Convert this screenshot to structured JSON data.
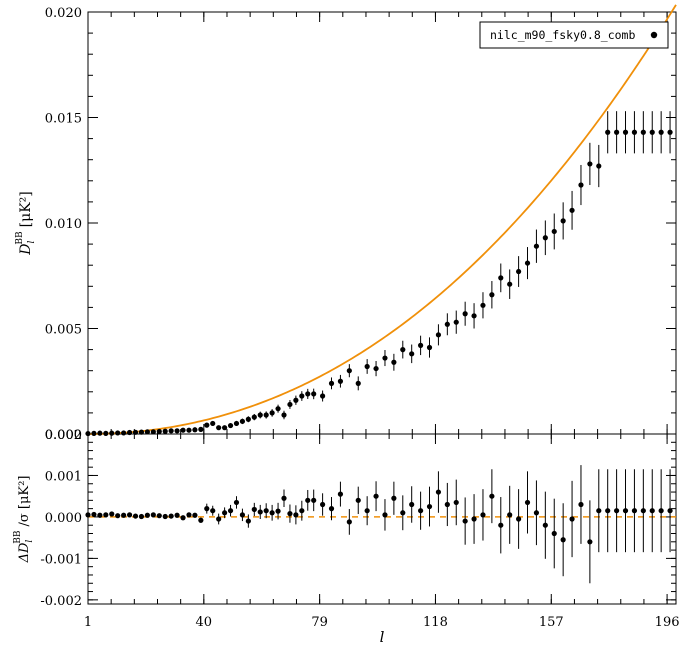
{
  "chart_data": [
    {
      "type": "scatter",
      "panel": "top",
      "ylabel_main": "D",
      "ylabel_sub": "l",
      "ylabel_sup": "BB",
      "ylabel_unit": "[μK²]",
      "ylim": [
        0,
        0.02
      ],
      "yticks": [
        "0.000",
        "0.005",
        "0.010",
        "0.015",
        "0.020"
      ],
      "ytick_values": [
        0,
        0.005,
        0.01,
        0.015,
        0.02
      ],
      "legend": {
        "label": "nilc_m90_fsky0.8_comb",
        "placement": "top-right"
      },
      "model_color": "#f0900a",
      "model_style": "solid",
      "points_x": [
        1,
        3,
        5,
        7,
        9,
        11,
        13,
        15,
        17,
        19,
        21,
        23,
        25,
        27,
        29,
        31,
        33,
        35,
        37,
        39,
        41,
        43,
        45,
        47,
        49,
        51,
        53,
        55,
        57,
        59,
        61,
        63,
        65,
        67,
        69,
        71,
        73,
        75,
        77,
        80,
        83,
        86,
        89,
        92,
        95,
        98,
        101,
        104,
        107,
        110,
        113,
        116,
        119,
        122,
        125,
        128,
        131,
        134,
        137,
        140,
        143,
        146,
        149,
        152,
        155,
        158,
        161,
        164,
        167,
        170,
        173,
        176,
        179,
        182,
        185,
        188,
        191,
        194,
        197
      ],
      "points_y": [
        2e-05,
        3e-05,
        4e-05,
        3e-05,
        4e-05,
        5e-05,
        5e-05,
        7e-05,
        8e-05,
        9e-05,
        0.0001,
        0.0001,
        0.00012,
        0.00013,
        0.00015,
        0.00015,
        0.00018,
        0.00018,
        0.0002,
        0.00022,
        0.00042,
        0.0005,
        0.0003,
        0.0003,
        0.0004,
        0.0005,
        0.0006,
        0.0007,
        0.0008,
        0.0009,
        0.0009,
        0.001,
        0.0012,
        0.0009,
        0.0014,
        0.0016,
        0.0018,
        0.0019,
        0.0019,
        0.0018,
        0.0024,
        0.0025,
        0.003,
        0.0024,
        0.0032,
        0.0031,
        0.0036,
        0.0034,
        0.004,
        0.0038,
        0.0042,
        0.0041,
        0.0047,
        0.0052,
        0.0053,
        0.0057,
        0.0056,
        0.0061,
        0.0066,
        0.0074,
        0.0071,
        0.0077,
        0.0081,
        0.0089,
        0.0093,
        0.0096,
        0.0101,
        0.0106,
        0.0118,
        0.0128,
        0.0127,
        0.0143,
        0.0143,
        0.0143,
        0.0143,
        0.0143,
        0.0143,
        0.0143,
        0.0143
      ],
      "points_err": [
        1e-05,
        1e-05,
        1e-05,
        1e-05,
        1e-05,
        2e-05,
        2e-05,
        2e-05,
        2e-05,
        3e-05,
        3e-05,
        3e-05,
        3e-05,
        4e-05,
        4e-05,
        4e-05,
        5e-05,
        5e-05,
        6e-05,
        6e-05,
        8e-05,
        9e-05,
        0.0001,
        0.0001,
        0.00011,
        0.00012,
        0.00013,
        0.00014,
        0.00015,
        0.00016,
        0.00017,
        0.00018,
        0.00019,
        0.0002,
        0.00021,
        0.00022,
        0.00023,
        0.00024,
        0.00025,
        0.00026,
        0.00028,
        0.0003,
        0.00031,
        0.00033,
        0.00035,
        0.00036,
        0.00038,
        0.0004,
        0.00042,
        0.00044,
        0.00046,
        0.00048,
        0.0005,
        0.00052,
        0.00055,
        0.00057,
        0.0006,
        0.00062,
        0.00065,
        0.00068,
        0.0007,
        0.00073,
        0.00076,
        0.00079,
        0.00082,
        0.00085,
        0.00088,
        0.00092,
        0.00095,
        0.001,
        0.001,
        0.001,
        0.001,
        0.001,
        0.001,
        0.001,
        0.001,
        0.001,
        0.001
      ]
    },
    {
      "type": "scatter",
      "panel": "bottom",
      "ylabel_prefix": "ΔD",
      "ylabel_sub": "l",
      "ylabel_sup": "BB",
      "ylabel_suffix": "/σ [μK²]",
      "ylim": [
        -0.0021,
        0.002
      ],
      "yticks": [
        "-0.002",
        "-0.001",
        "0.000",
        "0.001",
        "0.002"
      ],
      "ytick_values": [
        -0.002,
        -0.001,
        0,
        0.001,
        0.002
      ],
      "xlabel": "l",
      "xlim": [
        1,
        199
      ],
      "xticks": [
        "1",
        "40",
        "79",
        "118",
        "157",
        "196"
      ],
      "xtick_values": [
        1,
        40,
        79,
        118,
        157,
        196
      ],
      "zero_line_color": "#f0900a",
      "zero_line_style": "dashed",
      "points_x": [
        1,
        3,
        5,
        7,
        9,
        11,
        13,
        15,
        17,
        19,
        21,
        23,
        25,
        27,
        29,
        31,
        33,
        35,
        37,
        39,
        41,
        43,
        45,
        47,
        49,
        51,
        53,
        55,
        57,
        59,
        61,
        63,
        65,
        67,
        69,
        71,
        73,
        75,
        77,
        80,
        83,
        86,
        89,
        92,
        95,
        98,
        101,
        104,
        107,
        110,
        113,
        116,
        119,
        122,
        125,
        128,
        131,
        134,
        137,
        140,
        143,
        146,
        149,
        152,
        155,
        158,
        161,
        164,
        167,
        170,
        173,
        176,
        179,
        182,
        185,
        188,
        191,
        194,
        197
      ],
      "points_y": [
        5e-05,
        6e-05,
        4e-05,
        5e-05,
        7e-05,
        3e-05,
        4e-05,
        5e-05,
        2e-05,
        1e-05,
        4e-05,
        5e-05,
        3e-05,
        1e-05,
        2e-05,
        4e-05,
        -2e-05,
        5e-05,
        4e-05,
        -8e-05,
        0.0002,
        0.00015,
        -5e-05,
        0.0001,
        0.00015,
        0.00035,
        5e-05,
        -0.0001,
        0.00018,
        0.00012,
        0.00015,
        0.0001,
        0.00014,
        0.00045,
        8e-05,
        5e-05,
        0.00015,
        0.0004,
        0.0004,
        0.0003,
        0.0002,
        0.00055,
        -0.00012,
        0.0004,
        0.00015,
        0.0005,
        5e-05,
        0.00045,
        0.0001,
        0.0003,
        0.00015,
        0.00025,
        0.0006,
        0.0003,
        0.00035,
        -0.0001,
        -5e-05,
        5e-05,
        0.0005,
        -0.0002,
        5e-05,
        -5e-05,
        0.00035,
        0.0001,
        -0.0002,
        -0.0004,
        -0.00055,
        -5e-05,
        0.0003,
        -0.0006,
        0.00015,
        0.00015,
        0.00015,
        0.00015,
        0.00015,
        0.00015,
        0.00015,
        0.00015,
        0.00015
      ],
      "points_err": [
        4e-05,
        4e-05,
        4e-05,
        4e-05,
        4e-05,
        4e-05,
        4e-05,
        4e-05,
        4e-05,
        4e-05,
        5e-05,
        5e-05,
        5e-05,
        5e-05,
        5e-05,
        5e-05,
        5e-05,
        5e-05,
        5e-05,
        6e-05,
        0.00012,
        0.00012,
        0.00013,
        0.00013,
        0.00014,
        0.00015,
        0.00015,
        0.00016,
        0.00016,
        0.00017,
        0.00018,
        0.00019,
        0.0002,
        0.00021,
        0.00022,
        0.00023,
        0.00024,
        0.00025,
        0.00026,
        0.00027,
        0.00028,
        0.0003,
        0.00031,
        0.00033,
        0.00035,
        0.00036,
        0.00038,
        0.0004,
        0.00042,
        0.00044,
        0.00046,
        0.00048,
        0.0005,
        0.00052,
        0.00055,
        0.00057,
        0.0006,
        0.00062,
        0.00065,
        0.00068,
        0.0007,
        0.00072,
        0.00075,
        0.00078,
        0.00081,
        0.00084,
        0.00088,
        0.00092,
        0.00095,
        0.001,
        0.001,
        0.001,
        0.001,
        0.001,
        0.001,
        0.001,
        0.001,
        0.001,
        0.001
      ]
    }
  ]
}
